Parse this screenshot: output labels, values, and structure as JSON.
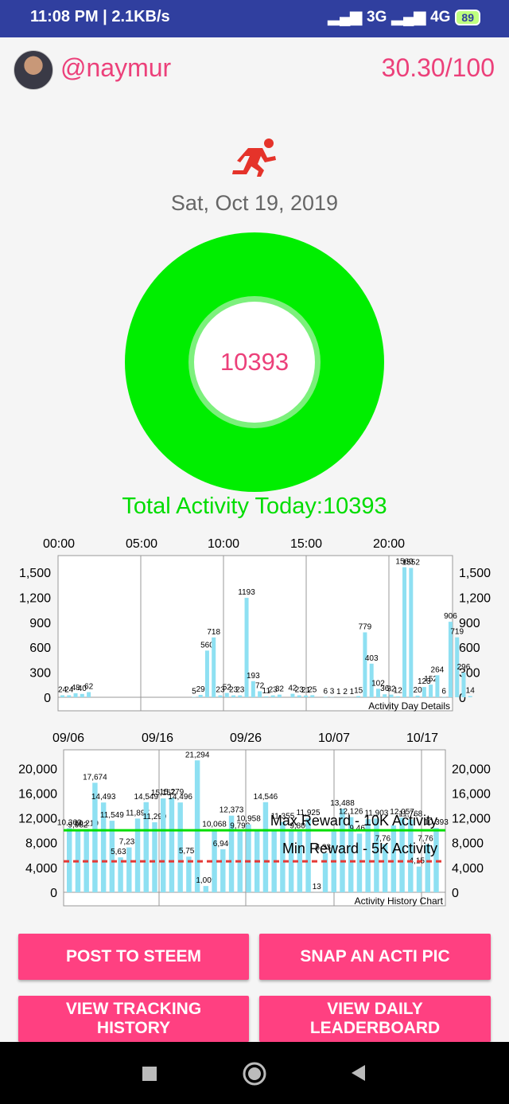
{
  "status_bar": {
    "time_speed": "11:08 PM | 2.1KB/s",
    "network": "3G",
    "network2": "4G",
    "battery": "89"
  },
  "header": {
    "username": "@naymur",
    "score": "30.30/100"
  },
  "date": "Sat, Oct 19, 2019",
  "donut": {
    "value": "10393"
  },
  "total_activity": "Total Activity Today:10393",
  "colors": {
    "accent": "#ff4081",
    "donut": "#00ee00",
    "bar": "#8ee0f2",
    "max_line": "#00dd00",
    "min_line": "#e53935"
  },
  "chart_data": [
    {
      "type": "bar",
      "title": "",
      "caption": "Activity Day Details",
      "x_ticks": [
        "00:00",
        "05:00",
        "10:00",
        "15:00",
        "20:00"
      ],
      "y_ticks": [
        "1,500",
        "1,200",
        "900",
        "600",
        "300",
        "0"
      ],
      "ylim": [
        0,
        1700
      ],
      "x_unit": "half-hour slot (0-47)",
      "points": [
        {
          "x": 0,
          "y": 24,
          "label": "24"
        },
        {
          "x": 1,
          "y": 24,
          "label": "24"
        },
        {
          "x": 2,
          "y": 48,
          "label": "48"
        },
        {
          "x": 3,
          "y": 40,
          "label": "40"
        },
        {
          "x": 4,
          "y": 62,
          "label": "62"
        },
        {
          "x": 20,
          "y": 5,
          "label": "5"
        },
        {
          "x": 21,
          "y": 29,
          "label": "29"
        },
        {
          "x": 22,
          "y": 560,
          "label": "560"
        },
        {
          "x": 23,
          "y": 718,
          "label": "718"
        },
        {
          "x": 24,
          "y": 23,
          "label": "23"
        },
        {
          "x": 25,
          "y": 52,
          "label": "52"
        },
        {
          "x": 26,
          "y": 23,
          "label": "23"
        },
        {
          "x": 27,
          "y": 23,
          "label": "23"
        },
        {
          "x": 28,
          "y": 1193,
          "label": "1193"
        },
        {
          "x": 29,
          "y": 193,
          "label": "193"
        },
        {
          "x": 30,
          "y": 72,
          "label": "72"
        },
        {
          "x": 31,
          "y": 11,
          "label": "11"
        },
        {
          "x": 32,
          "y": 23,
          "label": "23"
        },
        {
          "x": 33,
          "y": 32,
          "label": "32"
        },
        {
          "x": 35,
          "y": 42,
          "label": "42"
        },
        {
          "x": 36,
          "y": 23,
          "label": "23"
        },
        {
          "x": 37,
          "y": 21,
          "label": "21"
        },
        {
          "x": 38,
          "y": 25,
          "label": "25"
        },
        {
          "x": 40,
          "y": 6,
          "label": "6"
        },
        {
          "x": 41,
          "y": 3,
          "label": "3"
        },
        {
          "x": 42,
          "y": 1,
          "label": "1"
        },
        {
          "x": 43,
          "y": 2,
          "label": "2"
        },
        {
          "x": 44,
          "y": 1,
          "label": "1"
        },
        {
          "x": 45,
          "y": 15,
          "label": "15"
        },
        {
          "x": 46,
          "y": 779,
          "label": "779"
        },
        {
          "x": 47,
          "y": 403,
          "label": "403"
        },
        {
          "x": 48,
          "y": 102,
          "label": "102"
        },
        {
          "x": 49,
          "y": 36,
          "label": "36"
        },
        {
          "x": 50,
          "y": 32,
          "label": "32"
        },
        {
          "x": 51,
          "y": 12,
          "label": "12"
        },
        {
          "x": 52,
          "y": 1560,
          "label": "1560"
        },
        {
          "x": 53,
          "y": 1552,
          "label": "1552"
        },
        {
          "x": 54,
          "y": 20,
          "label": "20"
        },
        {
          "x": 55,
          "y": 123,
          "label": "123"
        },
        {
          "x": 56,
          "y": 152,
          "label": "152"
        },
        {
          "x": 57,
          "y": 264,
          "label": "264"
        },
        {
          "x": 58,
          "y": 6,
          "label": "6"
        },
        {
          "x": 59,
          "y": 906,
          "label": "906"
        },
        {
          "x": 60,
          "y": 719,
          "label": "719"
        },
        {
          "x": 61,
          "y": 296,
          "label": "296"
        },
        {
          "x": 62,
          "y": 14,
          "label": "14"
        }
      ]
    },
    {
      "type": "bar",
      "title": "",
      "caption": "Activity History Chart",
      "x_ticks": [
        "09/06",
        "09/16",
        "09/26",
        "10/07",
        "10/17"
      ],
      "y_ticks": [
        "20,000",
        "16,000",
        "12,000",
        "8,000",
        "4,000",
        "0"
      ],
      "ylim": [
        0,
        23000
      ],
      "reference_lines": [
        {
          "name": "Max Reward - 10K Activity",
          "value": 10000
        },
        {
          "name": "Min Reward - 5K Activity",
          "value": 5000
        }
      ],
      "values": [
        10360,
        9982,
        10219,
        17674,
        14493,
        11549,
        5632,
        7238,
        11897,
        14549,
        11299,
        15157,
        15279,
        14496,
        5751,
        21294,
        1009,
        10068,
        6940,
        12373,
        9798,
        10958,
        10125,
        14546,
        10100,
        11355,
        10200,
        9800,
        11925,
        13,
        6333,
        9800,
        13488,
        12126,
        9468,
        11800,
        11903,
        7763,
        10800,
        12057,
        11768,
        4152,
        7767,
        10393
      ],
      "labels": [
        "10,360",
        "9,982",
        "10,219",
        "17,674",
        "14,493",
        "11,549",
        "5,632",
        "7,238",
        "11,897",
        "14,549",
        "11,299",
        "15,157",
        "15,279",
        "14,496",
        "5,751",
        "21,294",
        "1,009",
        "10,068",
        "6,940",
        "12,373",
        "9,798",
        "10,958",
        "",
        "14,546",
        "",
        "11,355",
        "",
        "9,800",
        "11,925",
        "13",
        "6,333",
        "",
        "13,488",
        "12,126",
        "9,468",
        "",
        "11,903",
        "7,763",
        "",
        "12,057",
        "11,768",
        "4,152",
        "7,767",
        "10,393"
      ]
    }
  ],
  "buttons": {
    "post": "POST TO STEEM",
    "snap": "SNAP AN ACTI PIC",
    "tracking_line1": "VIEW TRACKING",
    "tracking_line2": "HISTORY",
    "leaderboard_line1": "VIEW DAILY",
    "leaderboard_line2": "LEADERBOARD"
  },
  "nav_icons": [
    "recents-square-icon",
    "home-circle-icon",
    "back-triangle-icon"
  ]
}
